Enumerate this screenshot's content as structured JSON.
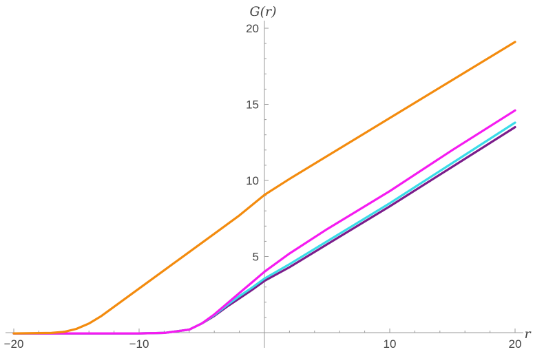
{
  "chart_data": {
    "type": "line",
    "title": "",
    "xlabel": "r",
    "ylabel": "G(r)",
    "xlim": [
      -20,
      20
    ],
    "ylim": [
      0,
      20
    ],
    "x_ticks": [
      -20,
      -10,
      10,
      20
    ],
    "x_tick_labels": [
      "−20",
      "−10",
      "10",
      "20"
    ],
    "y_ticks": [
      5,
      10,
      15,
      20
    ],
    "y_tick_labels": [
      "5",
      "10",
      "15",
      "20"
    ],
    "grid": false,
    "legend": "none",
    "series": [
      {
        "color": "#7B1C8A",
        "x": [
          -20,
          -10,
          -8,
          -6,
          -5,
          -4,
          -3,
          -2,
          -1,
          0,
          2,
          5,
          10,
          15,
          20
        ],
        "y": [
          -0.05,
          -0.05,
          -0.02,
          0.2,
          0.6,
          1.1,
          1.7,
          2.25,
          2.8,
          3.4,
          4.3,
          5.8,
          8.3,
          10.9,
          13.5
        ]
      },
      {
        "color": "#3ADCE8",
        "x": [
          -20,
          -10,
          -8,
          -6,
          -5,
          -4,
          -3,
          -2,
          -1,
          0,
          2,
          5,
          10,
          15,
          20
        ],
        "y": [
          -0.05,
          -0.05,
          -0.02,
          0.2,
          0.6,
          1.15,
          1.8,
          2.4,
          2.95,
          3.55,
          4.5,
          6.0,
          8.5,
          11.15,
          13.8
        ]
      },
      {
        "color": "#F51BF0",
        "x": [
          -20,
          -10,
          -8,
          -6,
          -5,
          -4,
          -3,
          -2,
          -1,
          0,
          2,
          5,
          8,
          10,
          15,
          20
        ],
        "y": [
          -0.05,
          -0.05,
          -0.02,
          0.2,
          0.6,
          1.2,
          1.9,
          2.6,
          3.3,
          4.0,
          5.2,
          6.8,
          8.3,
          9.3,
          12.0,
          14.6
        ]
      },
      {
        "color": "#F38B0E",
        "x": [
          -20,
          -17,
          -16,
          -15,
          -14,
          -13,
          -12,
          -10,
          -8,
          -6,
          -4,
          -2,
          0,
          2,
          5,
          10,
          15,
          20
        ],
        "y": [
          -0.05,
          -0.02,
          0.05,
          0.25,
          0.6,
          1.1,
          1.7,
          2.9,
          4.1,
          5.3,
          6.5,
          7.7,
          9.05,
          10.1,
          11.6,
          14.1,
          16.6,
          19.1
        ]
      }
    ]
  }
}
